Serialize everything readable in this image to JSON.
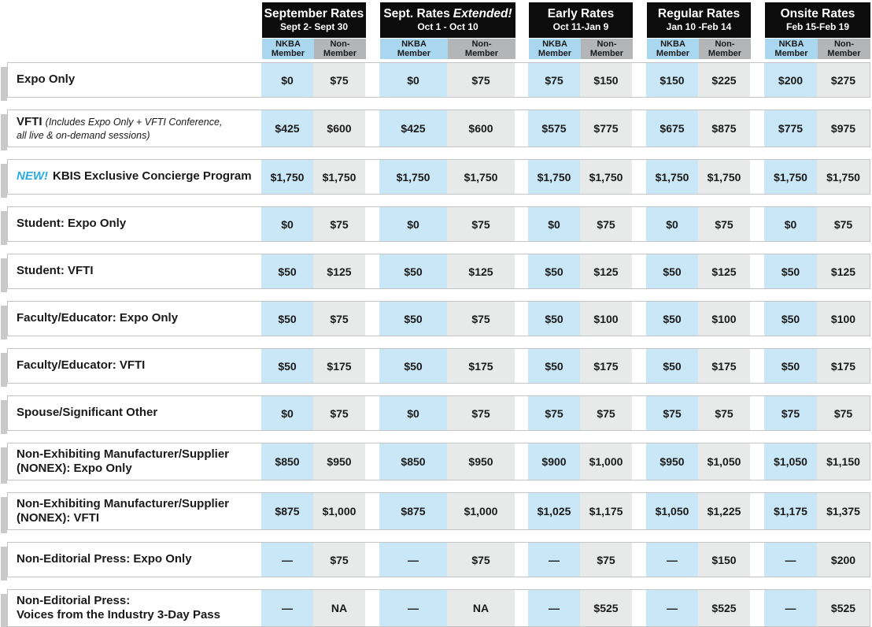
{
  "colors": {
    "header_bg": "#0c0c0c",
    "header_text": "#ffffff",
    "member_header_bg": "#a8d7ef",
    "nonmember_header_bg": "#b3b5b7",
    "member_cell_bg": "#c9e7f6",
    "nonmember_cell_bg": "#e8e9e9",
    "accent_new": "#29aae1",
    "card_border": "#c4c4c4",
    "shadow": "#c9c9c9",
    "text": "#1a1a1a"
  },
  "header": {
    "groups": [
      {
        "title": "September Rates",
        "title_italic": "",
        "dates": "Sept 2- Sept 30"
      },
      {
        "title": "Sept. Rates",
        "title_italic": "Extended!",
        "dates": "Oct 1 - Oct 10"
      },
      {
        "title": "Early Rates",
        "title_italic": "",
        "dates": "Oct 11-Jan 9"
      },
      {
        "title": "Regular Rates",
        "title_italic": "",
        "dates": "Jan 10 -Feb 14"
      },
      {
        "title": "Onsite Rates",
        "title_italic": "",
        "dates": "Feb 15-Feb 19"
      }
    ],
    "sub": {
      "member": [
        "NKBA",
        "Member"
      ],
      "nonmember": [
        "Non-",
        "Member"
      ]
    }
  },
  "rows": [
    {
      "label": "Expo Only",
      "rates": [
        "$0",
        "$75",
        "$0",
        "$75",
        "$75",
        "$150",
        "$150",
        "$225",
        "$200",
        "$275"
      ]
    },
    {
      "label": "VFTI",
      "note": "(Includes Expo Only + VFTI Conference,",
      "note2": "all live & on-demand sessions)",
      "rates": [
        "$425",
        "$600",
        "$425",
        "$600",
        "$575",
        "$775",
        "$675",
        "$875",
        "$775",
        "$975"
      ]
    },
    {
      "prefix": "NEW!",
      "label": "KBIS Exclusive Concierge Program",
      "rates": [
        "$1,750",
        "$1,750",
        "$1,750",
        "$1,750",
        "$1,750",
        "$1,750",
        "$1,750",
        "$1,750",
        "$1,750",
        "$1,750"
      ]
    },
    {
      "label": "Student: Expo Only",
      "rates": [
        "$0",
        "$75",
        "$0",
        "$75",
        "$0",
        "$75",
        "$0",
        "$75",
        "$0",
        "$75"
      ]
    },
    {
      "label": "Student: VFTI",
      "rates": [
        "$50",
        "$125",
        "$50",
        "$125",
        "$50",
        "$125",
        "$50",
        "$125",
        "$50",
        "$125"
      ]
    },
    {
      "label": "Faculty/Educator: Expo Only",
      "rates": [
        "$50",
        "$75",
        "$50",
        "$75",
        "$50",
        "$100",
        "$50",
        "$100",
        "$50",
        "$100"
      ]
    },
    {
      "label": "Faculty/Educator: VFTI",
      "rates": [
        "$50",
        "$175",
        "$50",
        "$175",
        "$50",
        "$175",
        "$50",
        "$175",
        "$50",
        "$175"
      ]
    },
    {
      "label": "Spouse/Significant Other",
      "rates": [
        "$0",
        "$75",
        "$0",
        "$75",
        "$75",
        "$75",
        "$75",
        "$75",
        "$75",
        "$75"
      ]
    },
    {
      "label": "Non-Exhibiting Manufacturer/Supplier",
      "label2": "(NONEX): Expo Only",
      "rates": [
        "$850",
        "$950",
        "$850",
        "$950",
        "$900",
        "$1,000",
        "$950",
        "$1,050",
        "$1,050",
        "$1,150"
      ]
    },
    {
      "label": "Non-Exhibiting Manufacturer/Supplier",
      "label2": "(NONEX): VFTI",
      "rates": [
        "$875",
        "$1,000",
        "$875",
        "$1,000",
        "$1,025",
        "$1,175",
        "$1,050",
        "$1,225",
        "$1,175",
        "$1,375"
      ]
    },
    {
      "label": "Non-Editorial Press: Expo Only",
      "rates": [
        "—",
        "$75",
        "—",
        "$75",
        "—",
        "$75",
        "—",
        "$150",
        "—",
        "$200"
      ]
    },
    {
      "label": "Non-Editorial Press:",
      "label2": "Voices from the Industry 3-Day Pass",
      "rates": [
        "—",
        "NA",
        "—",
        "NA",
        "—",
        "$525",
        "—",
        "$525",
        "—",
        "$525"
      ]
    }
  ]
}
